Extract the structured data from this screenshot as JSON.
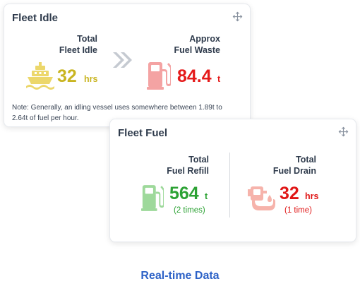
{
  "fleet_idle": {
    "title": "Fleet Idle",
    "idle": {
      "label_line1": "Total",
      "label_line2": "Fleet Idle",
      "value": "32",
      "unit": "hrs"
    },
    "waste": {
      "label_line1": "Approx",
      "label_line2": "Fuel Waste",
      "value": "84.4",
      "unit": "t"
    },
    "note_line1": "Note: Generally, an idling vessel uses somewhere between 1.89t to",
    "note_line2": "2.64t of fuel per hour."
  },
  "fleet_fuel": {
    "title": "Fleet Fuel",
    "refill": {
      "label_line1": "Total",
      "label_line2": "Fuel Refill",
      "value": "564",
      "unit": "t",
      "count": "(2 times)"
    },
    "drain": {
      "label_line1": "Total",
      "label_line2": "Fuel Drain",
      "value": "32",
      "unit": "hrs",
      "count": "(1 time)"
    }
  },
  "caption": "Real-time Data",
  "colors": {
    "idle_gold": "#c9b521",
    "waste_red": "#e51b1b",
    "refill_green": "#2ca234",
    "drain_red": "#e01616",
    "caption_blue": "#2d62c7"
  },
  "icons": [
    "ship-icon",
    "double-chevron-right-icon",
    "fuel-pump-icon",
    "fuel-drain-icon",
    "move-icon"
  ]
}
